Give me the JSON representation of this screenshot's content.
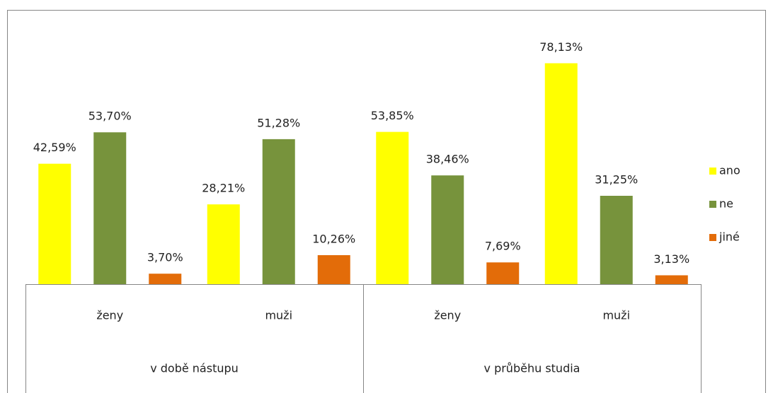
{
  "chart_data": {
    "type": "bar",
    "categories": [
      "ženy",
      "muži",
      "ženy",
      "muži"
    ],
    "groups": [
      "v době nástupu",
      "v průběhu studia"
    ],
    "series": [
      {
        "name": "ano",
        "color": "#ffff00",
        "values": [
          42.59,
          28.21,
          53.85,
          78.13
        ],
        "value_labels": [
          "42,59%",
          "28,21%",
          "53,85%",
          "78,13%"
        ]
      },
      {
        "name": "ne",
        "color": "#77933c",
        "values": [
          53.7,
          51.28,
          38.46,
          31.25
        ],
        "value_labels": [
          "53,70%",
          "51,28%",
          "38,46%",
          "31,25%"
        ]
      },
      {
        "name": "jiné",
        "color": "#e36c09",
        "values": [
          3.7,
          10.26,
          7.69,
          3.13
        ],
        "value_labels": [
          "3,70%",
          "10,26%",
          "7,69%",
          "3,13%"
        ]
      }
    ],
    "legend": "right"
  }
}
